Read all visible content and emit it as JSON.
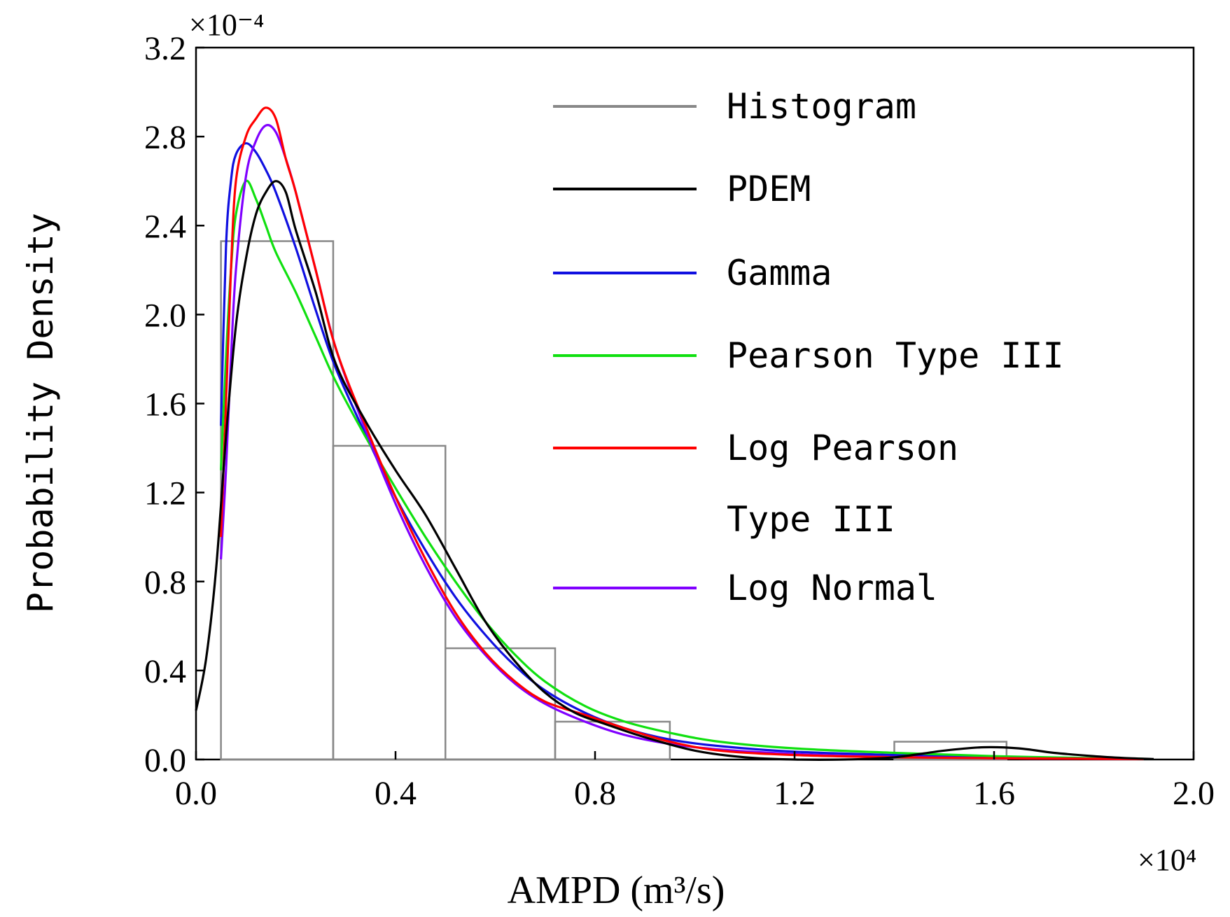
{
  "chart_data": {
    "type": "line",
    "title": "",
    "xlabel": "AMPD (m³/s)",
    "ylabel": "Probability Density",
    "x_multiplier": "×10⁴",
    "y_multiplier": "×10⁻⁴",
    "xlim": [
      0.0,
      2.0
    ],
    "ylim": [
      0.0,
      3.2
    ],
    "xticks": [
      "0.0",
      "0.4",
      "0.8",
      "1.2",
      "1.6",
      "2.0"
    ],
    "yticks": [
      "0.0",
      "0.4",
      "0.8",
      "1.2",
      "1.6",
      "2.0",
      "2.4",
      "2.8",
      "3.2"
    ],
    "legend_position": "top-right",
    "colors": {
      "histogram": "#888888",
      "pdem": "#000000",
      "gamma": "#1010e0",
      "pearson3": "#10e010",
      "logpearson3": "#ff0000",
      "lognormal": "#8000ff"
    },
    "histogram": {
      "name": "Histogram",
      "bins": [
        {
          "x0": 0.05,
          "x1": 0.275,
          "y": 2.33
        },
        {
          "x0": 0.275,
          "x1": 0.5,
          "y": 1.41
        },
        {
          "x0": 0.5,
          "x1": 0.72,
          "y": 0.5
        },
        {
          "x0": 0.72,
          "x1": 0.95,
          "y": 0.17
        },
        {
          "x0": 0.95,
          "x1": 1.175,
          "y": 0.0
        },
        {
          "x0": 1.175,
          "x1": 1.4,
          "y": 0.0
        },
        {
          "x0": 1.4,
          "x1": 1.625,
          "y": 0.08
        }
      ]
    },
    "series": [
      {
        "key": "pdem",
        "name": "PDEM",
        "x": [
          0.0,
          0.02,
          0.04,
          0.06,
          0.08,
          0.1,
          0.12,
          0.14,
          0.16,
          0.18,
          0.2,
          0.24,
          0.28,
          0.34,
          0.4,
          0.46,
          0.52,
          0.58,
          0.64,
          0.7,
          0.76,
          0.82,
          0.9,
          1.0,
          1.1,
          1.2,
          1.3,
          1.4,
          1.5,
          1.58,
          1.65,
          1.72,
          1.8,
          1.86,
          1.92
        ],
        "y": [
          0.22,
          0.45,
          0.85,
          1.45,
          1.95,
          2.25,
          2.45,
          2.55,
          2.6,
          2.55,
          2.38,
          2.1,
          1.78,
          1.52,
          1.3,
          1.1,
          0.86,
          0.62,
          0.44,
          0.3,
          0.21,
          0.16,
          0.1,
          0.04,
          0.01,
          0.0,
          0.0,
          0.01,
          0.04,
          0.055,
          0.05,
          0.03,
          0.015,
          0.007,
          0.002
        ]
      },
      {
        "key": "gamma",
        "name": "Gamma",
        "x": [
          0.05,
          0.06,
          0.07,
          0.08,
          0.1,
          0.12,
          0.14,
          0.16,
          0.2,
          0.24,
          0.28,
          0.34,
          0.4,
          0.46,
          0.52,
          0.58,
          0.64,
          0.7,
          0.78,
          0.86,
          0.95,
          1.05,
          1.2,
          1.4,
          1.6,
          1.8,
          1.9
        ],
        "y": [
          1.5,
          2.3,
          2.6,
          2.72,
          2.77,
          2.73,
          2.65,
          2.55,
          2.3,
          2.02,
          1.76,
          1.46,
          1.18,
          0.94,
          0.73,
          0.56,
          0.42,
          0.31,
          0.21,
          0.14,
          0.09,
          0.06,
          0.035,
          0.02,
          0.01,
          0.005,
          0.002
        ]
      },
      {
        "key": "pearson3",
        "name": "Pearson Type III",
        "x": [
          0.05,
          0.06,
          0.07,
          0.08,
          0.1,
          0.12,
          0.14,
          0.16,
          0.2,
          0.24,
          0.28,
          0.34,
          0.4,
          0.46,
          0.52,
          0.58,
          0.64,
          0.7,
          0.78,
          0.86,
          0.95,
          1.05,
          1.2,
          1.4,
          1.6,
          1.8,
          1.9
        ],
        "y": [
          1.3,
          1.8,
          2.2,
          2.45,
          2.6,
          2.52,
          2.4,
          2.28,
          2.1,
          1.9,
          1.7,
          1.45,
          1.22,
          1.0,
          0.8,
          0.62,
          0.47,
          0.35,
          0.24,
          0.17,
          0.12,
          0.08,
          0.05,
          0.03,
          0.015,
          0.006,
          0.003
        ]
      },
      {
        "key": "logpearson3",
        "name": "Log Pearson Type III",
        "x": [
          0.05,
          0.06,
          0.07,
          0.08,
          0.1,
          0.12,
          0.14,
          0.16,
          0.18,
          0.2,
          0.24,
          0.28,
          0.34,
          0.4,
          0.46,
          0.52,
          0.58,
          0.64,
          0.7,
          0.78,
          0.86,
          0.95,
          1.05,
          1.2,
          1.4,
          1.6,
          1.8,
          1.9
        ],
        "y": [
          1.0,
          1.6,
          2.2,
          2.6,
          2.8,
          2.88,
          2.93,
          2.88,
          2.7,
          2.55,
          2.2,
          1.85,
          1.5,
          1.18,
          0.9,
          0.66,
          0.48,
          0.35,
          0.26,
          0.2,
          0.14,
          0.08,
          0.04,
          0.02,
          0.01,
          0.006,
          0.003,
          0.002
        ]
      },
      {
        "key": "lognormal",
        "name": "Log Normal",
        "x": [
          0.05,
          0.06,
          0.07,
          0.08,
          0.1,
          0.12,
          0.14,
          0.16,
          0.18,
          0.2,
          0.24,
          0.28,
          0.34,
          0.4,
          0.46,
          0.52,
          0.58,
          0.64,
          0.7,
          0.78,
          0.86,
          0.95,
          1.05,
          1.2,
          1.4,
          1.6,
          1.8,
          1.9
        ],
        "y": [
          0.9,
          1.3,
          1.8,
          2.2,
          2.62,
          2.78,
          2.85,
          2.82,
          2.7,
          2.55,
          2.2,
          1.85,
          1.48,
          1.15,
          0.87,
          0.64,
          0.47,
          0.34,
          0.25,
          0.17,
          0.11,
          0.07,
          0.045,
          0.025,
          0.012,
          0.006,
          0.003,
          0.002
        ]
      }
    ],
    "legend": [
      {
        "key": "histogram",
        "label_lines": [
          "Histogram"
        ]
      },
      {
        "key": "pdem",
        "label_lines": [
          "PDEM"
        ]
      },
      {
        "key": "gamma",
        "label_lines": [
          "Gamma"
        ]
      },
      {
        "key": "pearson3",
        "label_lines": [
          "Pearson Type III"
        ]
      },
      {
        "key": "logpearson3",
        "label_lines": [
          "Log Pearson",
          "Type III"
        ]
      },
      {
        "key": "lognormal",
        "label_lines": [
          "Log Normal"
        ]
      }
    ]
  }
}
